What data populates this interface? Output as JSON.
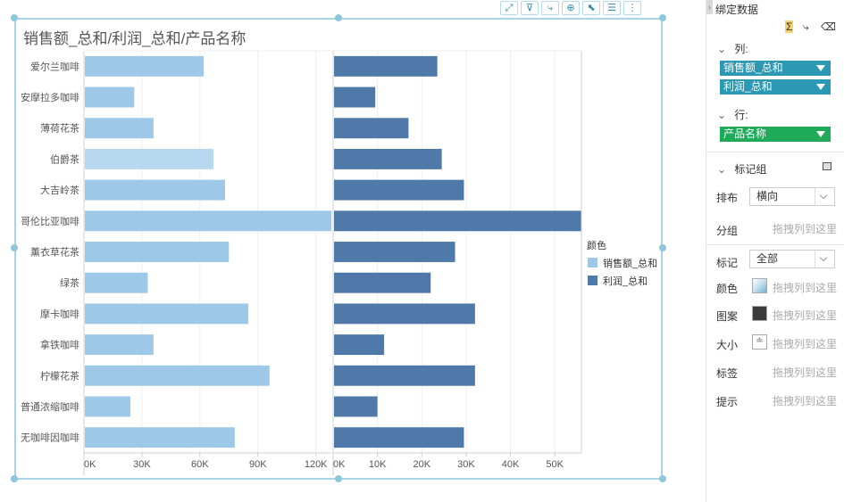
{
  "title": "销售额_总和/利润_总和/产品名称",
  "toolbar": {
    "icons": [
      "fullscreen-icon",
      "filter-icon",
      "drill-icon",
      "zoom-icon",
      "select-icon",
      "list-icon",
      "more-icon"
    ],
    "glyphs": [
      "⤢",
      "⊽",
      "⤷",
      "⊕",
      "⬉",
      "☰",
      "⋮"
    ]
  },
  "chart_data": {
    "type": "bar",
    "orientation": "horizontal",
    "categories": [
      "爱尔兰咖啡",
      "安摩拉多咖啡",
      "薄荷花茶",
      "伯爵茶",
      "大吉岭茶",
      "哥伦比亚咖啡",
      "薰衣草花茶",
      "绿茶",
      "摩卡咖啡",
      "拿铁咖啡",
      "柠檬花茶",
      "普通浓缩咖啡",
      "无咖啡因咖啡"
    ],
    "panels": [
      {
        "name": "销售额_总和",
        "color": "#9dc8e8",
        "xlim": [
          0,
          128000
        ],
        "ticks": [
          0,
          30000,
          60000,
          90000,
          120000
        ],
        "tick_labels": [
          "0K",
          "30K",
          "60K",
          "90K",
          "120K"
        ],
        "values": [
          62000,
          26000,
          36000,
          67000,
          73000,
          128000,
          75000,
          33000,
          85000,
          36000,
          96000,
          24000,
          78000
        ]
      },
      {
        "name": "利润_总和",
        "color": "#4f79a8",
        "xlim": [
          0,
          56000
        ],
        "ticks": [
          0,
          10000,
          20000,
          30000,
          40000,
          50000
        ],
        "tick_labels": [
          "0K",
          "10K",
          "20K",
          "30K",
          "40K",
          "50K"
        ],
        "values": [
          23500,
          9500,
          17000,
          24500,
          29500,
          56000,
          27500,
          22000,
          32000,
          11500,
          32000,
          10000,
          29500
        ]
      }
    ],
    "legend_title": "颜色",
    "legend_position": "right",
    "grid": true
  },
  "panel": {
    "title": "绑定数据",
    "columns_label": "列:",
    "columns": [
      {
        "label": "销售额_总和",
        "color": "#2c98b4"
      },
      {
        "label": "利润_总和",
        "color": "#2c98b4"
      }
    ],
    "rows_label": "行:",
    "rows": [
      {
        "label": "产品名称",
        "color": "#1faa5a"
      }
    ],
    "marks_label": "标记组",
    "layout_label": "排布",
    "layout_value": "横向",
    "group_label": "分组",
    "drop_text": "拖拽列到这里",
    "mark_label": "标记",
    "mark_value": "全部",
    "color_label": "颜色",
    "pattern_label": "图案",
    "size_label": "大小",
    "tag_label": "标签",
    "tip_label": "提示"
  }
}
